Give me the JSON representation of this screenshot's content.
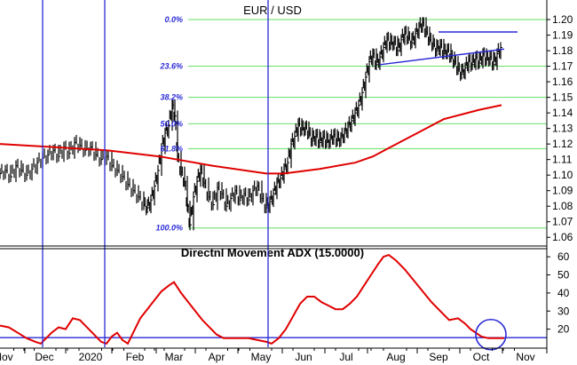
{
  "chart_data": [
    {
      "type": "ohlc",
      "title": "EUR / USD",
      "ylim": [
        1.055,
        1.208
      ],
      "y_ticks": [
        "1.06",
        "1.07",
        "1.08",
        "1.09",
        "1.10",
        "1.11",
        "1.12",
        "1.13",
        "1.14",
        "1.15",
        "1.16",
        "1.17",
        "1.18",
        "1.19",
        "1.20"
      ],
      "x_labels": [
        "Nov",
        "Dec",
        "2020",
        "Feb",
        "Mar",
        "Apr",
        "May",
        "Jun",
        "Jul",
        "Aug",
        "Sep",
        "Oct",
        "Nov"
      ],
      "price_series": {
        "name": "EUR/USD daily",
        "points": [
          [
            0,
            1.101
          ],
          [
            6,
            1.103
          ],
          [
            12,
            1.099
          ],
          [
            18,
            1.106
          ],
          [
            24,
            1.103
          ],
          [
            30,
            1.1
          ],
          [
            36,
            1.104
          ],
          [
            42,
            1.108
          ],
          [
            48,
            1.111
          ],
          [
            54,
            1.113
          ],
          [
            60,
            1.116
          ],
          [
            66,
            1.112
          ],
          [
            72,
            1.118
          ],
          [
            78,
            1.114
          ],
          [
            84,
            1.121
          ],
          [
            90,
            1.119
          ],
          [
            96,
            1.116
          ],
          [
            102,
            1.118
          ],
          [
            108,
            1.113
          ],
          [
            114,
            1.11
          ],
          [
            120,
            1.112
          ],
          [
            126,
            1.106
          ],
          [
            132,
            1.103
          ],
          [
            138,
            1.099
          ],
          [
            144,
            1.094
          ],
          [
            150,
            1.09
          ],
          [
            156,
            1.086
          ],
          [
            162,
            1.081
          ],
          [
            166,
            1.079
          ],
          [
            170,
            1.084
          ],
          [
            174,
            1.093
          ],
          [
            178,
            1.103
          ],
          [
            182,
            1.117
          ],
          [
            186,
            1.127
          ],
          [
            190,
            1.132
          ],
          [
            194,
            1.145
          ],
          [
            197,
            1.138
          ],
          [
            200,
            1.112
          ],
          [
            204,
            1.102
          ],
          [
            208,
            1.096
          ],
          [
            211,
            1.08
          ],
          [
            214,
            1.068
          ],
          [
            218,
            1.086
          ],
          [
            222,
            1.096
          ],
          [
            226,
            1.104
          ],
          [
            230,
            1.095
          ],
          [
            235,
            1.086
          ],
          [
            240,
            1.081
          ],
          [
            245,
            1.092
          ],
          [
            250,
            1.088
          ],
          [
            255,
            1.08
          ],
          [
            260,
            1.085
          ],
          [
            265,
            1.09
          ],
          [
            270,
            1.084
          ],
          [
            275,
            1.088
          ],
          [
            280,
            1.084
          ],
          [
            285,
            1.09
          ],
          [
            290,
            1.093
          ],
          [
            295,
            1.085
          ],
          [
            300,
            1.079
          ],
          [
            304,
            1.083
          ],
          [
            308,
            1.088
          ],
          [
            312,
            1.095
          ],
          [
            316,
            1.098
          ],
          [
            320,
            1.104
          ],
          [
            324,
            1.108
          ],
          [
            328,
            1.12
          ],
          [
            332,
            1.125
          ],
          [
            336,
            1.133
          ],
          [
            340,
            1.129
          ],
          [
            344,
            1.131
          ],
          [
            348,
            1.127
          ],
          [
            352,
            1.122
          ],
          [
            356,
            1.126
          ],
          [
            360,
            1.121
          ],
          [
            364,
            1.125
          ],
          [
            368,
            1.121
          ],
          [
            372,
            1.123
          ],
          [
            376,
            1.126
          ],
          [
            380,
            1.122
          ],
          [
            384,
            1.124
          ],
          [
            388,
            1.127
          ],
          [
            392,
            1.131
          ],
          [
            396,
            1.135
          ],
          [
            400,
            1.14
          ],
          [
            404,
            1.145
          ],
          [
            408,
            1.153
          ],
          [
            412,
            1.163
          ],
          [
            416,
            1.173
          ],
          [
            420,
            1.178
          ],
          [
            424,
            1.171
          ],
          [
            428,
            1.176
          ],
          [
            432,
            1.182
          ],
          [
            436,
            1.188
          ],
          [
            440,
            1.184
          ],
          [
            444,
            1.186
          ],
          [
            448,
            1.18
          ],
          [
            452,
            1.187
          ],
          [
            456,
            1.192
          ],
          [
            460,
            1.188
          ],
          [
            464,
            1.185
          ],
          [
            468,
            1.191
          ],
          [
            472,
            1.195
          ],
          [
            476,
            1.198
          ],
          [
            480,
            1.192
          ],
          [
            484,
            1.187
          ],
          [
            488,
            1.184
          ],
          [
            492,
            1.18
          ],
          [
            496,
            1.184
          ],
          [
            500,
            1.178
          ],
          [
            504,
            1.181
          ],
          [
            508,
            1.176
          ],
          [
            512,
            1.173
          ],
          [
            516,
            1.168
          ],
          [
            520,
            1.165
          ],
          [
            524,
            1.169
          ],
          [
            528,
            1.174
          ],
          [
            532,
            1.171
          ],
          [
            536,
            1.176
          ],
          [
            540,
            1.172
          ],
          [
            544,
            1.178
          ],
          [
            548,
            1.174
          ],
          [
            552,
            1.176
          ],
          [
            556,
            1.171
          ],
          [
            560,
            1.178
          ],
          [
            564,
            1.182
          ]
        ]
      },
      "moving_average": {
        "name": "moving average",
        "color": "#e00000",
        "points": [
          [
            0,
            1.12
          ],
          [
            60,
            1.118
          ],
          [
            120,
            1.116
          ],
          [
            180,
            1.112
          ],
          [
            240,
            1.106
          ],
          [
            300,
            1.101
          ],
          [
            320,
            1.101
          ],
          [
            360,
            1.104
          ],
          [
            400,
            1.108
          ],
          [
            420,
            1.112
          ],
          [
            440,
            1.118
          ],
          [
            460,
            1.124
          ],
          [
            480,
            1.13
          ],
          [
            500,
            1.136
          ],
          [
            520,
            1.139
          ],
          [
            540,
            1.142
          ],
          [
            565,
            1.145
          ]
        ]
      },
      "fibonacci_levels": [
        {
          "label": "0.0%",
          "value": 1.2
        },
        {
          "label": "23.6%",
          "value": 1.17
        },
        {
          "label": "38.2%",
          "value": 1.15
        },
        {
          "label": "50.0%",
          "value": 1.133
        },
        {
          "label": "61.8%",
          "value": 1.117
        },
        {
          "label": "100.0%",
          "value": 1.066
        }
      ],
      "trendlines": [
        {
          "color": "#2a2ad6",
          "points": [
            [
              428,
              1.171
            ],
            [
              568,
              1.181
            ]
          ]
        },
        {
          "color": "#2a2ad6",
          "points": [
            [
              494,
              1.192
            ],
            [
              583,
              1.192
            ]
          ]
        }
      ],
      "grid": false
    },
    {
      "type": "line",
      "title": "Directnl Movement ADX (15.0000)",
      "ylim": [
        10,
        64
      ],
      "y_ticks": [
        "20",
        "30",
        "40",
        "50",
        "60"
      ],
      "series": [
        {
          "name": "ADX",
          "color": "#e00000",
          "points": [
            [
              0,
              22
            ],
            [
              10,
              21
            ],
            [
              20,
              18
            ],
            [
              30,
              15
            ],
            [
              40,
              13
            ],
            [
              46,
              12
            ],
            [
              52,
              15
            ],
            [
              58,
              18
            ],
            [
              66,
              21
            ],
            [
              74,
              20
            ],
            [
              82,
              26
            ],
            [
              90,
              25
            ],
            [
              98,
              21
            ],
            [
              106,
              17
            ],
            [
              114,
              13
            ],
            [
              120,
              12
            ],
            [
              126,
              16
            ],
            [
              132,
              18
            ],
            [
              138,
              14
            ],
            [
              144,
              12
            ],
            [
              150,
              18
            ],
            [
              158,
              26
            ],
            [
              166,
              31
            ],
            [
              174,
              36
            ],
            [
              182,
              41
            ],
            [
              190,
              44
            ],
            [
              196,
              46
            ],
            [
              204,
              40
            ],
            [
              212,
              35
            ],
            [
              220,
              30
            ],
            [
              228,
              25
            ],
            [
              236,
              21
            ],
            [
              244,
              17
            ],
            [
              252,
              15
            ],
            [
              260,
              15
            ],
            [
              270,
              15
            ],
            [
              280,
              15
            ],
            [
              290,
              14
            ],
            [
              300,
              13
            ],
            [
              306,
              12
            ],
            [
              314,
              15
            ],
            [
              322,
              20
            ],
            [
              330,
              27
            ],
            [
              338,
              34
            ],
            [
              346,
              38
            ],
            [
              354,
              38
            ],
            [
              362,
              35
            ],
            [
              370,
              33
            ],
            [
              378,
              31
            ],
            [
              386,
              31
            ],
            [
              394,
              34
            ],
            [
              402,
              38
            ],
            [
              410,
              44
            ],
            [
              418,
              50
            ],
            [
              426,
              56
            ],
            [
              432,
              60
            ],
            [
              438,
              61
            ],
            [
              446,
              58
            ],
            [
              456,
              53
            ],
            [
              466,
              47
            ],
            [
              476,
              41
            ],
            [
              486,
              35
            ],
            [
              496,
              30
            ],
            [
              506,
              25
            ],
            [
              516,
              26
            ],
            [
              524,
              23
            ],
            [
              530,
              20
            ],
            [
              536,
              18
            ],
            [
              542,
              16
            ],
            [
              550,
              15
            ],
            [
              560,
              15
            ],
            [
              568,
              15
            ]
          ]
        }
      ],
      "reference_line": {
        "value": 15.3,
        "color": "#2a2ad6"
      },
      "highlight_circle": {
        "x": 553,
        "value": 17,
        "color": "#2a2ad6"
      },
      "grid": false
    }
  ],
  "vertical_markers": [
    {
      "x": 48,
      "color": "#2a2ad6"
    },
    {
      "x": 118,
      "color": "#2a2ad6"
    },
    {
      "x": 302,
      "color": "#2a2ad6"
    }
  ],
  "colors": {
    "fib_line": "#66dd66",
    "fib_label": "#2a2ad6",
    "marker": "#2a2ad6",
    "price": "#000000",
    "ma": "#e00000"
  }
}
